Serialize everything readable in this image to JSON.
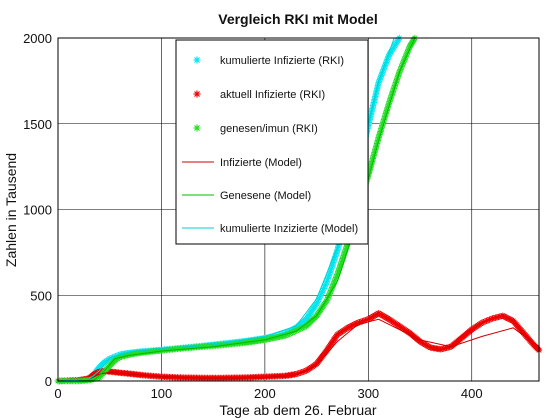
{
  "chart_data": {
    "type": "line",
    "title": "Vergleich RKI mit Model",
    "xlabel": "Tage ab dem 26. Februar",
    "ylabel": "Zahlen in Tausend",
    "xlim": [
      0,
      465
    ],
    "ylim": [
      0,
      2000
    ],
    "xticks": [
      0,
      100,
      200,
      300,
      400
    ],
    "yticks": [
      0,
      500,
      1000,
      1500,
      2000
    ],
    "grid": true,
    "legend_position": "top-center",
    "series": [
      {
        "name": "kumulierte Infizierte (RKI)",
        "style": "marker",
        "marker": "*",
        "color": "#00e5ee",
        "x": [
          0,
          20,
          30,
          35,
          40,
          45,
          50,
          60,
          70,
          80,
          100,
          120,
          140,
          160,
          180,
          200,
          210,
          220,
          230,
          240,
          250,
          260,
          270,
          280,
          290,
          300,
          310,
          320,
          330
        ],
        "y": [
          0,
          5,
          15,
          40,
          80,
          110,
          130,
          155,
          165,
          172,
          182,
          193,
          205,
          218,
          232,
          250,
          262,
          280,
          310,
          360,
          450,
          580,
          760,
          980,
          1230,
          1490,
          1740,
          1900,
          2000
        ]
      },
      {
        "name": "aktuell Infizierte (RKI)",
        "style": "marker",
        "marker": "*",
        "color": "#ee0000",
        "x": [
          0,
          20,
          30,
          35,
          40,
          45,
          50,
          60,
          70,
          80,
          100,
          120,
          140,
          160,
          180,
          200,
          220,
          230,
          240,
          250,
          260,
          270,
          280,
          290,
          300,
          310,
          320,
          330,
          340,
          350,
          360,
          370,
          380,
          390,
          400,
          410,
          420,
          430,
          440,
          450,
          460,
          465
        ],
        "y": [
          0,
          5,
          15,
          40,
          55,
          58,
          55,
          48,
          42,
          35,
          25,
          20,
          18,
          18,
          20,
          25,
          30,
          40,
          60,
          100,
          180,
          270,
          310,
          340,
          360,
          395,
          360,
          320,
          280,
          230,
          195,
          185,
          200,
          250,
          300,
          340,
          365,
          380,
          350,
          280,
          210,
          180
        ]
      },
      {
        "name": "genesen/imun (RKI)",
        "style": "marker",
        "marker": "*",
        "color": "#22dd22",
        "x": [
          0,
          20,
          30,
          40,
          45,
          50,
          55,
          60,
          70,
          80,
          100,
          120,
          140,
          160,
          180,
          200,
          220,
          240,
          250,
          260,
          270,
          280,
          290,
          300,
          310,
          320,
          330,
          340,
          345
        ],
        "y": [
          0,
          0,
          5,
          20,
          55,
          90,
          120,
          140,
          155,
          165,
          178,
          190,
          200,
          210,
          222,
          240,
          265,
          320,
          380,
          470,
          620,
          800,
          1000,
          1200,
          1420,
          1620,
          1800,
          1950,
          2000
        ]
      },
      {
        "name": "Infizierte (Model)",
        "style": "line",
        "color": "#cc0000",
        "x": [
          0,
          30,
          40,
          50,
          70,
          100,
          150,
          200,
          230,
          250,
          270,
          290,
          310,
          330,
          350,
          380,
          410,
          440,
          465
        ],
        "y": [
          0,
          10,
          40,
          50,
          40,
          25,
          15,
          20,
          35,
          90,
          230,
          330,
          360,
          300,
          240,
          200,
          260,
          310,
          200
        ]
      },
      {
        "name": "Genesene (Model)",
        "style": "line",
        "color": "#00bb00",
        "x": [
          0,
          35,
          45,
          55,
          70,
          100,
          150,
          200,
          230,
          250,
          270,
          290,
          310,
          330,
          345
        ],
        "y": [
          0,
          5,
          60,
          130,
          150,
          175,
          200,
          240,
          290,
          380,
          580,
          950,
          1400,
          1800,
          2000
        ]
      },
      {
        "name": "kumulierte Inzizierte (Model)",
        "style": "line",
        "color": "#00d0d0",
        "x": [
          0,
          30,
          40,
          50,
          70,
          100,
          150,
          200,
          230,
          250,
          270,
          290,
          310,
          325
        ],
        "y": [
          0,
          10,
          60,
          135,
          170,
          190,
          210,
          260,
          320,
          480,
          780,
          1250,
          1750,
          2000
        ]
      }
    ]
  }
}
